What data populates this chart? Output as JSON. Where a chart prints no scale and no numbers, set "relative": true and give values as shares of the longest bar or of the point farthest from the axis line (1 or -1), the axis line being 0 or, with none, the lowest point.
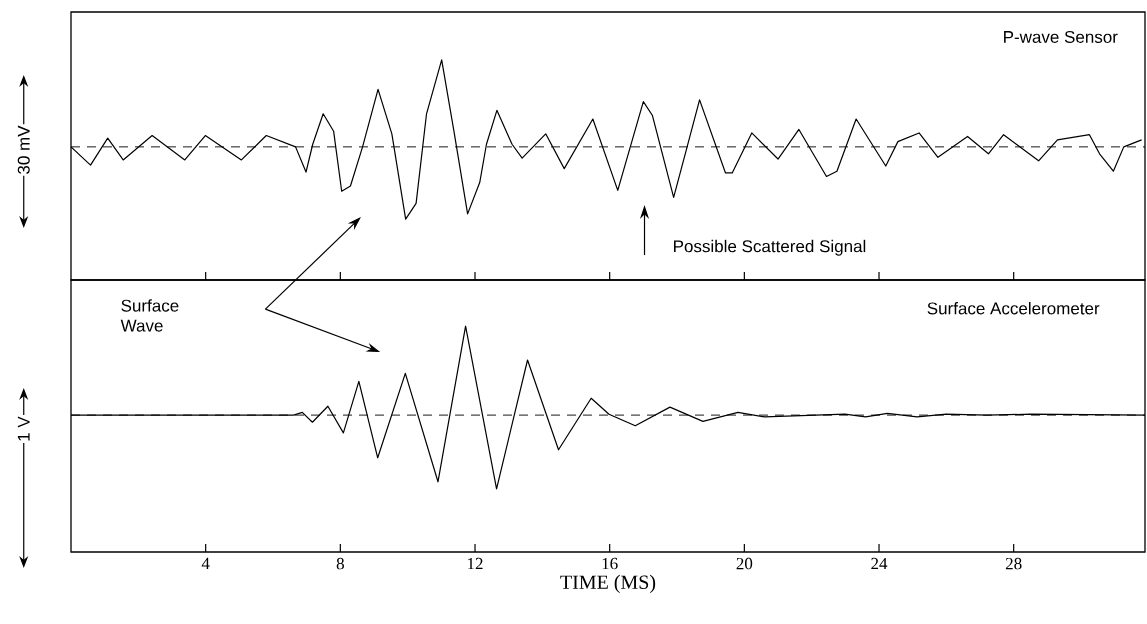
{
  "chart_data": [
    {
      "type": "line",
      "title": "P-wave Sensor",
      "ylabel": "30 mV",
      "relative": true,
      "tick_labels": false,
      "xlim": [
        0,
        31.9
      ],
      "xticks": [
        4,
        8,
        12,
        16,
        20,
        24,
        28
      ],
      "ref_lines": [
        {
          "axis": "y",
          "value": 0,
          "line_style": "dashed"
        }
      ],
      "annotations": [
        "Possible Scattered Signal"
      ],
      "series": [
        {
          "color": "#000000",
          "x": [
            0,
            0.58,
            1.09,
            1.55,
            2.41,
            3.38,
            3.99,
            5.06,
            5.8,
            6.67,
            6.98,
            7.18,
            7.49,
            7.8,
            8.04,
            8.3,
            8.66,
            9.12,
            9.53,
            9.94,
            10.25,
            10.56,
            11.01,
            11.37,
            11.78,
            12.14,
            12.34,
            12.65,
            13.1,
            13.4,
            14.1,
            14.65,
            15.5,
            16.24,
            17.0,
            17.27,
            17.9,
            18.3,
            18.67,
            19.44,
            19.64,
            20.22,
            21.0,
            21.62,
            22.44,
            22.75,
            23.32,
            24.2,
            24.56,
            25.19,
            25.75,
            26.63,
            27.25,
            27.7,
            28.74,
            29.3,
            30.25,
            30.55,
            30.96,
            31.27,
            31.8
          ],
          "values": [
            0,
            -0.21,
            0.1,
            -0.15,
            0.13,
            -0.15,
            0.13,
            -0.15,
            0.13,
            0,
            -0.29,
            0.03,
            0.38,
            0.18,
            -0.51,
            -0.45,
            0,
            0.66,
            0.15,
            -0.83,
            -0.65,
            0.38,
            1.0,
            0.19,
            -0.77,
            -0.41,
            0.03,
            0.42,
            0.03,
            -0.13,
            0.15,
            -0.25,
            0.32,
            -0.5,
            0.52,
            0.36,
            -0.58,
            0,
            0.54,
            -0.3,
            -0.3,
            0.16,
            -0.14,
            0.2,
            -0.34,
            -0.28,
            0.32,
            -0.22,
            0.06,
            0.16,
            -0.12,
            0.12,
            -0.08,
            0.14,
            -0.16,
            0.08,
            0.14,
            -0.08,
            -0.28,
            0,
            0.08
          ]
        }
      ]
    },
    {
      "type": "line",
      "title": "Surface Accelerometer",
      "ylabel": "1 V",
      "xlabel": "TIME (MS)",
      "relative": true,
      "tick_labels": "x",
      "xlim": [
        0,
        31.9
      ],
      "xticks": [
        4,
        8,
        12,
        16,
        20,
        24,
        28
      ],
      "ref_lines": [
        {
          "axis": "y",
          "value": 0,
          "line_style": "dashed"
        }
      ],
      "annotations": [
        "Surface Wave"
      ],
      "series": [
        {
          "color": "#000000",
          "x": [
            0,
            6.61,
            6.87,
            7.17,
            7.63,
            8.09,
            8.55,
            9.11,
            9.93,
            10.9,
            11.72,
            12.64,
            13.56,
            14.48,
            15.45,
            15.98,
            16.76,
            17.79,
            18.77,
            19.81,
            20.6,
            22.99,
            23.6,
            24.25,
            25.13,
            26.0,
            27.2,
            28.5,
            31.9
          ],
          "values": [
            0,
            0,
            0.03,
            -0.08,
            0.1,
            -0.2,
            0.38,
            -0.48,
            0.47,
            -0.75,
            1.0,
            -0.83,
            0.62,
            -0.39,
            0.19,
            0.01,
            -0.12,
            0.09,
            -0.07,
            0.03,
            -0.02,
            0.01,
            -0.02,
            0.02,
            -0.02,
            0.01,
            0,
            0.01,
            0
          ]
        }
      ]
    }
  ]
}
